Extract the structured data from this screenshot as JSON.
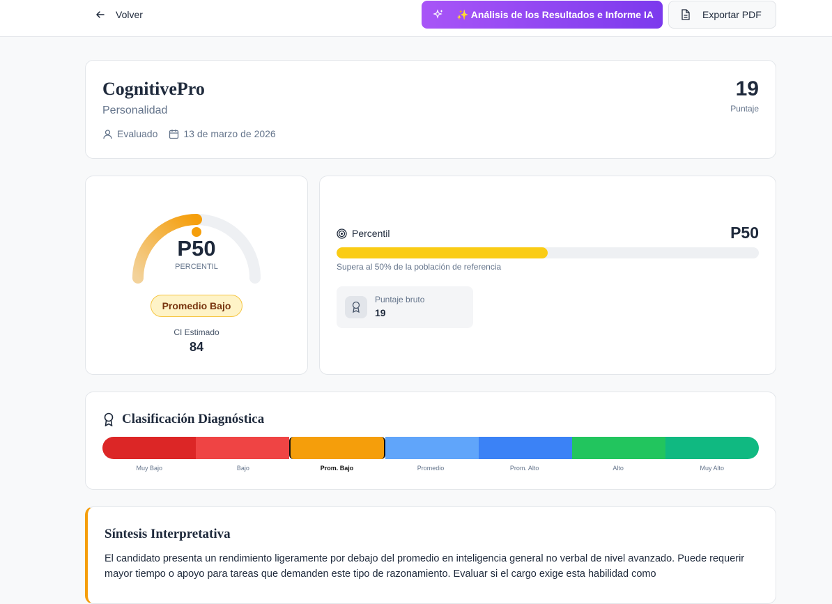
{
  "header": {
    "back": "Volver",
    "ai_button": "✨ Análisis de los Resultados e Informe IA",
    "export_button": "Exportar PDF"
  },
  "summary": {
    "title": "CognitivePro",
    "subtitle": "Personalidad",
    "evaluee": "Evaluado",
    "date": "13 de marzo de 2026",
    "score": 19,
    "score_label": "Puntaje"
  },
  "gauge": {
    "percentile": {
      "value": 50,
      "label": "P50"
    },
    "range": [
      0,
      100
    ],
    "caption": "PERCENTIL",
    "category": "Promedio Bajo",
    "iq_label": "CI Estimado",
    "iq": 84
  },
  "percentile_card": {
    "title": "Percentil",
    "percentile": {
      "value": 50,
      "label": "P50"
    },
    "range": [
      0,
      100
    ],
    "description": "Supera al 50% de la población de referencia",
    "raw_label": "Puntaje bruto",
    "raw": 19
  },
  "classification": {
    "title": "Clasificación Diagnóstica",
    "selected": 2,
    "levels": [
      {
        "label": "Muy Bajo",
        "color": "#dc2626"
      },
      {
        "label": "Bajo",
        "color": "#ef4444"
      },
      {
        "label": "Prom. Bajo",
        "color": "#f59e0b"
      },
      {
        "label": "Promedio",
        "color": "#60a5fa"
      },
      {
        "label": "Prom. Alto",
        "color": "#3b82f6"
      },
      {
        "label": "Alto",
        "color": "#22c55e"
      },
      {
        "label": "Muy Alto",
        "color": "#10b981"
      }
    ]
  },
  "synthesis": {
    "title": "Síntesis Interpretativa",
    "text": "El candidato presenta un rendimiento ligeramente por debajo del promedio en inteligencia general no verbal de nivel avanzado. Puede requerir mayor tiempo o apoyo para tareas que demanden este tipo de razonamiento. Evaluar si el cargo exige esta habilidad como"
  }
}
